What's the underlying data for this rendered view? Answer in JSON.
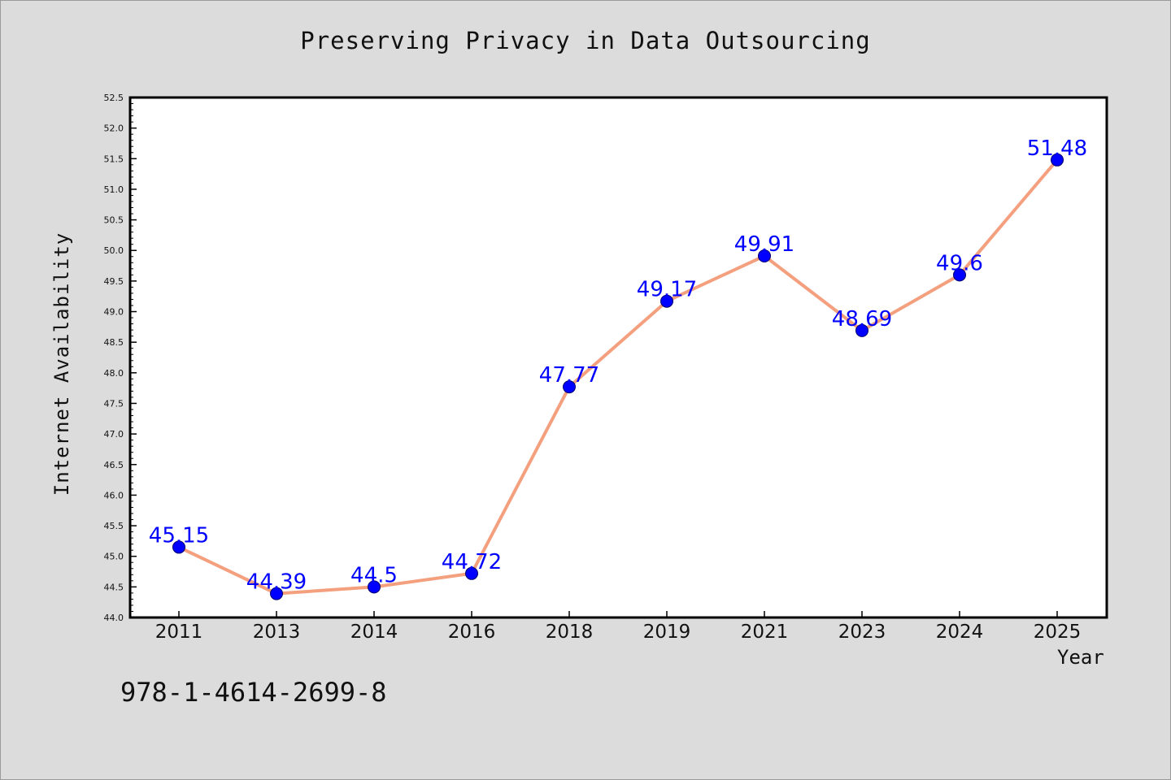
{
  "chart_data": {
    "type": "line",
    "title": "Preserving Privacy in Data Outsourcing",
    "xlabel": "Year",
    "ylabel": "Internet Availability",
    "categories": [
      "2011",
      "2013",
      "2014",
      "2016",
      "2018",
      "2019",
      "2021",
      "2023",
      "2024",
      "2025"
    ],
    "series": [
      {
        "values": [
          45.15,
          44.39,
          44.5,
          44.72,
          47.77,
          49.17,
          49.91,
          48.69,
          49.6,
          51.48
        ],
        "labels": [
          "45.15",
          "44.39",
          "44.5",
          "44.72",
          "47.77",
          "49.17",
          "49.91",
          "48.69",
          "49.6",
          "51.48"
        ]
      }
    ],
    "ylim": [
      44.0,
      52.5
    ],
    "ytick_step": 0.5,
    "line_color": "#f4a07e",
    "marker_color": "#0000ff",
    "label_color": "#0000ff",
    "grid": false
  },
  "footnote": "978-1-4614-2699-8"
}
